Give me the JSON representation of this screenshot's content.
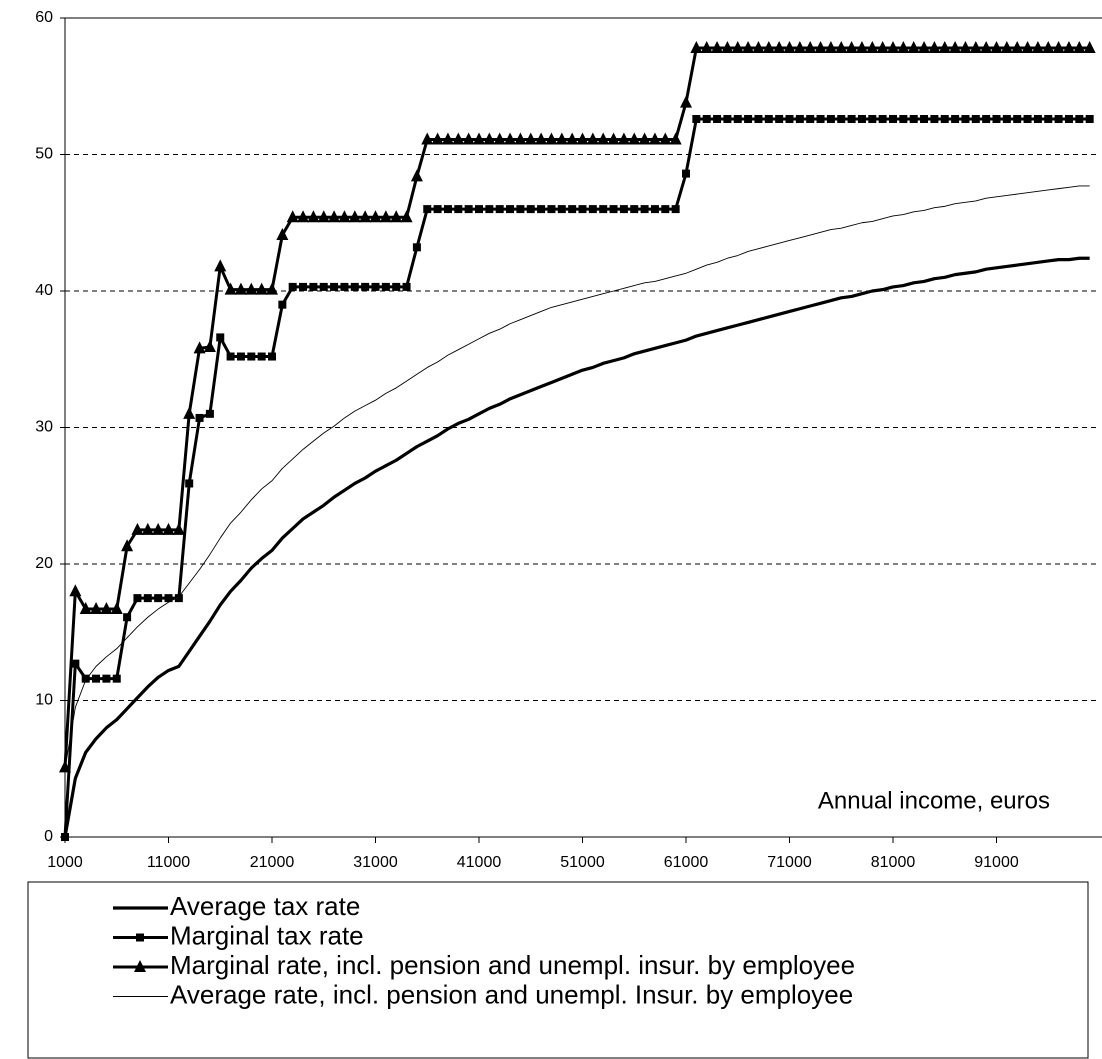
{
  "chart_data": {
    "type": "line",
    "annotation": "Annual income, euros",
    "x": [
      1000,
      2000,
      3000,
      4000,
      5000,
      6000,
      7000,
      8000,
      9000,
      10000,
      11000,
      12000,
      13000,
      14000,
      15000,
      16000,
      17000,
      18000,
      19000,
      20000,
      21000,
      22000,
      23000,
      24000,
      25000,
      26000,
      27000,
      28000,
      29000,
      30000,
      31000,
      32000,
      33000,
      34000,
      35000,
      36000,
      37000,
      38000,
      39000,
      40000,
      41000,
      42000,
      43000,
      44000,
      45000,
      46000,
      47000,
      48000,
      49000,
      50000,
      51000,
      52000,
      53000,
      54000,
      55000,
      56000,
      57000,
      58000,
      59000,
      60000,
      61000,
      62000,
      63000,
      64000,
      65000,
      66000,
      67000,
      68000,
      69000,
      70000,
      71000,
      72000,
      73000,
      74000,
      75000,
      76000,
      77000,
      78000,
      79000,
      80000,
      81000,
      82000,
      83000,
      84000,
      85000,
      86000,
      87000,
      88000,
      89000,
      90000,
      91000,
      92000,
      93000,
      94000,
      95000,
      96000,
      97000,
      98000,
      99000,
      100000
    ],
    "series": [
      {
        "name": "Average tax rate",
        "color": "#000000",
        "line_width": 3.2,
        "marker": "none",
        "values": [
          0,
          4.3,
          6.2,
          7.2,
          8,
          8.6,
          9.4,
          10.2,
          11,
          11.7,
          12.2,
          12.5,
          13.6,
          14.7,
          15.8,
          17,
          18,
          18.8,
          19.7,
          20.4,
          21,
          21.9,
          22.6,
          23.3,
          23.8,
          24.3,
          24.9,
          25.4,
          25.9,
          26.3,
          26.8,
          27.2,
          27.6,
          28.1,
          28.6,
          29,
          29.4,
          29.9,
          30.3,
          30.6,
          31,
          31.4,
          31.7,
          32.1,
          32.4,
          32.7,
          33,
          33.3,
          33.6,
          33.9,
          34.2,
          34.4,
          34.7,
          34.9,
          35.1,
          35.4,
          35.6,
          35.8,
          36,
          36.2,
          36.4,
          36.7,
          36.9,
          37.1,
          37.3,
          37.5,
          37.7,
          37.9,
          38.1,
          38.3,
          38.5,
          38.7,
          38.9,
          39.1,
          39.3,
          39.5,
          39.6,
          39.8,
          40,
          40.1,
          40.3,
          40.4,
          40.6,
          40.7,
          40.9,
          41,
          41.2,
          41.3,
          41.4,
          41.6,
          41.7,
          41.8,
          41.9,
          42,
          42.1,
          42.2,
          42.3,
          42.3,
          42.4,
          42.4
        ]
      },
      {
        "name": "Marginal tax rate",
        "color": "#000000",
        "line_width": 3,
        "marker": "square",
        "values": [
          0,
          12.7,
          11.6,
          11.6,
          11.6,
          11.6,
          16.1,
          17.5,
          17.5,
          17.5,
          17.5,
          17.5,
          25.9,
          30.7,
          31,
          36.6,
          35.2,
          35.2,
          35.2,
          35.2,
          35.2,
          39,
          40.3,
          40.3,
          40.3,
          40.3,
          40.3,
          40.3,
          40.3,
          40.3,
          40.3,
          40.3,
          40.3,
          40.3,
          43.2,
          46,
          46,
          46,
          46,
          46,
          46,
          46,
          46,
          46,
          46,
          46,
          46,
          46,
          46,
          46,
          46,
          46,
          46,
          46,
          46,
          46,
          46,
          46,
          46,
          46,
          48.6,
          52.6,
          52.6,
          52.6,
          52.6,
          52.6,
          52.6,
          52.6,
          52.6,
          52.6,
          52.6,
          52.6,
          52.6,
          52.6,
          52.6,
          52.6,
          52.6,
          52.6,
          52.6,
          52.6,
          52.6,
          52.6,
          52.6,
          52.6,
          52.6,
          52.6,
          52.6,
          52.6,
          52.6,
          52.6,
          52.6,
          52.6,
          52.6,
          52.6,
          52.6,
          52.6,
          52.6,
          52.6,
          52.6,
          52.6
        ]
      },
      {
        "name": "Marginal rate, incl. pension and unempl. insur. by employee",
        "color": "#000000",
        "line_width": 3,
        "marker": "triangle",
        "values": [
          5.1,
          18,
          16.7,
          16.7,
          16.7,
          16.7,
          21.3,
          22.5,
          22.5,
          22.5,
          22.5,
          22.5,
          31,
          35.8,
          35.9,
          41.8,
          40.1,
          40.1,
          40.1,
          40.1,
          40.1,
          44.1,
          45.4,
          45.4,
          45.4,
          45.4,
          45.4,
          45.4,
          45.4,
          45.4,
          45.4,
          45.4,
          45.4,
          45.4,
          48.4,
          51.1,
          51.1,
          51.1,
          51.1,
          51.1,
          51.1,
          51.1,
          51.1,
          51.1,
          51.1,
          51.1,
          51.1,
          51.1,
          51.1,
          51.1,
          51.1,
          51.1,
          51.1,
          51.1,
          51.1,
          51.1,
          51.1,
          51.1,
          51.1,
          51.1,
          53.8,
          57.8,
          57.8,
          57.8,
          57.8,
          57.8,
          57.8,
          57.8,
          57.8,
          57.8,
          57.8,
          57.8,
          57.8,
          57.8,
          57.8,
          57.8,
          57.8,
          57.8,
          57.8,
          57.8,
          57.8,
          57.8,
          57.8,
          57.8,
          57.8,
          57.8,
          57.8,
          57.8,
          57.8,
          57.8,
          57.8,
          57.8,
          57.8,
          57.8,
          57.8,
          57.8,
          57.8,
          57.8,
          57.8,
          57.8
        ]
      },
      {
        "name": "Average rate, incl. pension and unempl. Insur. by employee",
        "color": "#000000",
        "line_width": 0.9,
        "marker": "none",
        "values": [
          5,
          9.5,
          11.5,
          12.5,
          13.2,
          13.8,
          14.6,
          15.4,
          16.1,
          16.7,
          17.2,
          17.6,
          18.6,
          19.6,
          20.7,
          21.9,
          23,
          23.8,
          24.7,
          25.5,
          26.1,
          27,
          27.7,
          28.4,
          29,
          29.6,
          30.1,
          30.7,
          31.2,
          31.6,
          32,
          32.5,
          32.9,
          33.4,
          33.9,
          34.4,
          34.8,
          35.3,
          35.7,
          36.1,
          36.5,
          36.9,
          37.2,
          37.6,
          37.9,
          38.2,
          38.5,
          38.8,
          39,
          39.2,
          39.4,
          39.6,
          39.8,
          40,
          40.2,
          40.4,
          40.6,
          40.7,
          40.9,
          41.1,
          41.3,
          41.6,
          41.9,
          42.1,
          42.4,
          42.6,
          42.9,
          43.1,
          43.3,
          43.5,
          43.7,
          43.9,
          44.1,
          44.3,
          44.5,
          44.6,
          44.8,
          45,
          45.1,
          45.3,
          45.5,
          45.6,
          45.8,
          45.9,
          46.1,
          46.2,
          46.4,
          46.5,
          46.6,
          46.8,
          46.9,
          47,
          47.1,
          47.2,
          47.3,
          47.4,
          47.5,
          47.6,
          47.7,
          47.7
        ]
      }
    ],
    "xlim": [
      1000,
      101000
    ],
    "xticks": [
      1000,
      11000,
      21000,
      31000,
      41000,
      51000,
      61000,
      71000,
      81000,
      91000
    ],
    "ylim": [
      0,
      60
    ],
    "yticks": [
      0,
      10,
      20,
      30,
      40,
      50,
      60
    ],
    "grid": true,
    "legend": "bottom"
  }
}
